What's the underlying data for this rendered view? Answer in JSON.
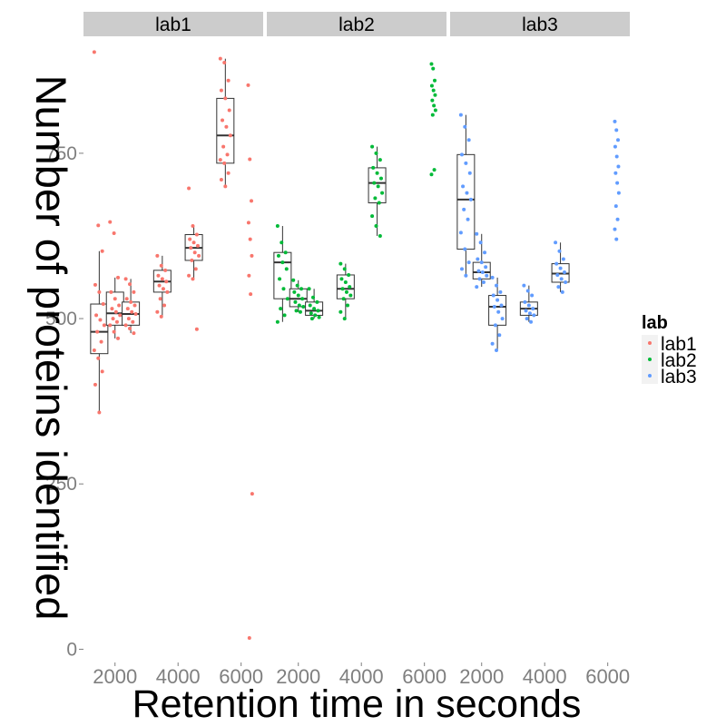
{
  "chart_data": {
    "type": "boxplot",
    "xlabel": "Retention time in seconds",
    "ylabel": "Number of proteins identified",
    "x_ticks": [
      2000,
      4000,
      6000
    ],
    "y_ticks": [
      0,
      250,
      500,
      750
    ],
    "ylim": [
      -20,
      920
    ],
    "xlim": [
      1000,
      6700
    ],
    "legend": {
      "title": "lab",
      "position": "right",
      "entries": [
        "lab1",
        "lab2",
        "lab3"
      ]
    },
    "colors": {
      "lab1": "#F8766D",
      "lab2": "#00BA38",
      "lab3": "#619CFF"
    },
    "panels": [
      {
        "label": "lab1",
        "groups": [
          {
            "x": 1500,
            "q1": 447,
            "median": 480,
            "q3": 522,
            "whisker_low": 358,
            "whisker_high": 602,
            "points": [
              903,
              641,
              602,
              551,
              540,
              522,
              505,
              498,
              490,
              480,
              465,
              452,
              440,
              420,
              400,
              358
            ]
          },
          {
            "x": 2000,
            "q1": 490,
            "median": 508,
            "q3": 540,
            "whisker_low": 470,
            "whisker_high": 562,
            "points": [
              646,
              629,
              562,
              540,
              530,
              520,
              515,
              510,
              505,
              500,
              495,
              490,
              480,
              470
            ]
          },
          {
            "x": 2500,
            "q1": 490,
            "median": 507,
            "q3": 525,
            "whisker_low": 478,
            "whisker_high": 560,
            "points": [
              560,
              552,
              540,
              530,
              525,
              520,
              515,
              510,
              507,
              500,
              495,
              490,
              485,
              478
            ]
          },
          {
            "x": 3500,
            "q1": 540,
            "median": 556,
            "q3": 573,
            "whisker_low": 503,
            "whisker_high": 595,
            "points": [
              595,
              580,
              573,
              565,
              560,
              556,
              550,
              545,
              540,
              530,
              520,
              510,
              503
            ]
          },
          {
            "x": 4500,
            "q1": 588,
            "median": 607,
            "q3": 627,
            "whisker_low": 560,
            "whisker_high": 640,
            "points": [
              697,
              640,
              627,
              620,
              615,
              610,
              607,
              600,
              595,
              588,
              575,
              565,
              560,
              484
            ]
          },
          {
            "x": 5500,
            "q1": 735,
            "median": 777,
            "q3": 833,
            "whisker_low": 700,
            "whisker_high": 893,
            "points": [
              893,
              887,
              860,
              845,
              833,
              815,
              800,
              790,
              777,
              760,
              748,
              740,
              735,
              720,
              710,
              700
            ]
          },
          {
            "x": 6000,
            "q1": 550,
            "median": 600,
            "q3": 667,
            "whisker_low": 550,
            "whisker_high": 667,
            "points": [
              853,
              741,
              678,
              645,
              620,
              595,
              565,
              537,
              235,
              17
            ]
          }
        ]
      },
      {
        "label": "lab2",
        "groups": [
          {
            "x": 1500,
            "q1": 530,
            "median": 585,
            "q3": 600,
            "whisker_low": 495,
            "whisker_high": 640,
            "points": [
              640,
              615,
              600,
              595,
              585,
              575,
              560,
              545,
              530,
              515,
              505,
              495
            ]
          },
          {
            "x": 2000,
            "q1": 518,
            "median": 530,
            "q3": 545,
            "whisker_low": 510,
            "whisker_high": 558,
            "points": [
              558,
              550,
              545,
              540,
              535,
              530,
              525,
              520,
              518,
              512,
              510
            ]
          },
          {
            "x": 2500,
            "q1": 505,
            "median": 512,
            "q3": 525,
            "whisker_low": 500,
            "whisker_high": 545,
            "points": [
              545,
              532,
              525,
              520,
              515,
              512,
              508,
              505,
              502,
              500
            ]
          },
          {
            "x": 3500,
            "q1": 530,
            "median": 545,
            "q3": 566,
            "whisker_low": 500,
            "whisker_high": 583,
            "points": [
              583,
              575,
              566,
              560,
              555,
              548,
              545,
              540,
              535,
              530,
              520,
              510,
              500
            ]
          },
          {
            "x": 4500,
            "q1": 675,
            "median": 705,
            "q3": 728,
            "whisker_low": 625,
            "whisker_high": 760,
            "points": [
              760,
              750,
              740,
              728,
              720,
              712,
              705,
              700,
              690,
              682,
              675,
              655,
              640,
              625
            ]
          },
          {
            "x": 6000,
            "q1": 810,
            "median": 828,
            "q3": 842,
            "whisker_low": 810,
            "whisker_high": 842,
            "points": [
              885,
              878,
              860,
              852,
              845,
              838,
              830,
              822,
              815,
              808,
              725,
              718
            ]
          }
        ]
      },
      {
        "label": "lab3",
        "groups": [
          {
            "x": 1500,
            "q1": 605,
            "median": 680,
            "q3": 748,
            "whisker_low": 565,
            "whisker_high": 808,
            "points": [
              808,
              790,
              770,
              748,
              735,
              720,
              700,
              690,
              680,
              665,
              650,
              630,
              605,
              585,
              575,
              565
            ]
          },
          {
            "x": 2000,
            "q1": 560,
            "median": 570,
            "q3": 585,
            "whisker_low": 548,
            "whisker_high": 628,
            "points": [
              628,
              615,
              600,
              590,
              585,
              578,
              572,
              570,
              565,
              560,
              555,
              548
            ]
          },
          {
            "x": 2500,
            "q1": 490,
            "median": 518,
            "q3": 535,
            "whisker_low": 452,
            "whisker_high": 562,
            "points": [
              562,
              550,
              540,
              535,
              528,
              520,
              518,
              510,
              500,
              490,
              475,
              462,
              452
            ]
          },
          {
            "x": 3500,
            "q1": 505,
            "median": 515,
            "q3": 525,
            "whisker_low": 495,
            "whisker_high": 550,
            "points": [
              550,
              542,
              535,
              525,
              520,
              515,
              512,
              508,
              505,
              500,
              495
            ]
          },
          {
            "x": 4500,
            "q1": 555,
            "median": 568,
            "q3": 583,
            "whisker_low": 540,
            "whisker_high": 615,
            "points": [
              615,
              602,
              590,
              583,
              576,
              570,
              566,
              560,
              555,
              548,
              540
            ]
          },
          {
            "x": 6000,
            "q1": 690,
            "median": 720,
            "q3": 760,
            "whisker_low": 690,
            "whisker_high": 760,
            "points": [
              798,
              785,
              770,
              760,
              745,
              730,
              720,
              705,
              690,
              670,
              650,
              635,
              620
            ]
          }
        ]
      }
    ]
  }
}
